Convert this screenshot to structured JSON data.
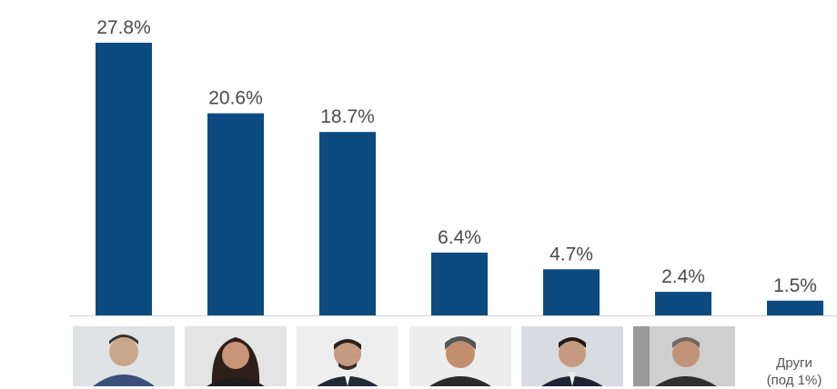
{
  "chart_data": {
    "type": "bar",
    "categories": [
      "",
      "",
      "",
      "",
      "",
      "",
      "Други (под 1%)"
    ],
    "values": [
      27.8,
      20.6,
      18.7,
      6.4,
      4.7,
      2.4,
      1.5
    ],
    "value_labels": [
      "27.8%",
      "20.6%",
      "18.7%",
      "6.4%",
      "4.7%",
      "2.4%",
      "1.5%"
    ],
    "ylim": [
      0,
      27.8
    ],
    "grid": false,
    "legend": "none",
    "bar_color": "#0c4b82",
    "title": "",
    "xlabel": "",
    "ylabel": ""
  },
  "categories_below": {
    "others_line1": "Други",
    "others_line2": "(под 1%)"
  },
  "photos": [
    {
      "icon": "person-photo-icon"
    },
    {
      "icon": "person-photo-icon"
    },
    {
      "icon": "person-photo-icon"
    },
    {
      "icon": "person-photo-icon"
    },
    {
      "icon": "person-photo-icon"
    },
    {
      "icon": "person-photo-icon"
    }
  ],
  "colors": {
    "bar": "#0c4b82",
    "label": "#4a4a4a",
    "baseline": "#d0d0d0"
  }
}
